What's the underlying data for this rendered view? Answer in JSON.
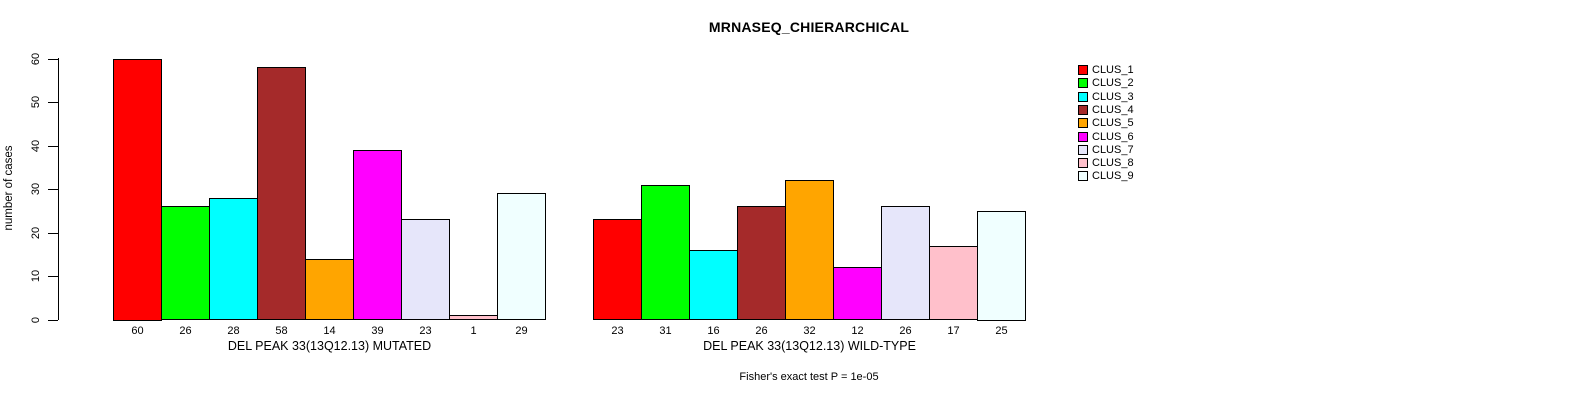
{
  "chart_data": {
    "type": "bar",
    "title": "MRNASEQ_CHIERARCHICAL",
    "ylabel": "number of cases",
    "ylim": [
      0,
      60
    ],
    "yticks": [
      0,
      10,
      20,
      30,
      40,
      50,
      60
    ],
    "grid": false,
    "legend_position": "right",
    "clusters": [
      {
        "name": "CLUS_1",
        "color": "#FF0000"
      },
      {
        "name": "CLUS_2",
        "color": "#00FF00"
      },
      {
        "name": "CLUS_3",
        "color": "#00FFFF"
      },
      {
        "name": "CLUS_4",
        "color": "#A52A2A"
      },
      {
        "name": "CLUS_5",
        "color": "#FFA500"
      },
      {
        "name": "CLUS_6",
        "color": "#FF00FF"
      },
      {
        "name": "CLUS_7",
        "color": "#E6E6FA"
      },
      {
        "name": "CLUS_8",
        "color": "#FFC0CB"
      },
      {
        "name": "CLUS_9",
        "color": "#F0FFFF"
      }
    ],
    "groups": [
      {
        "label": "DEL PEAK 33(13Q12.13) MUTATED",
        "values": [
          60,
          26,
          28,
          58,
          14,
          39,
          23,
          1,
          29
        ]
      },
      {
        "label": "DEL PEAK 33(13Q12.13) WILD-TYPE",
        "values": [
          23,
          31,
          16,
          26,
          32,
          12,
          26,
          17,
          25
        ]
      }
    ],
    "annotation": "Fisher's exact test P = 1e-05"
  }
}
